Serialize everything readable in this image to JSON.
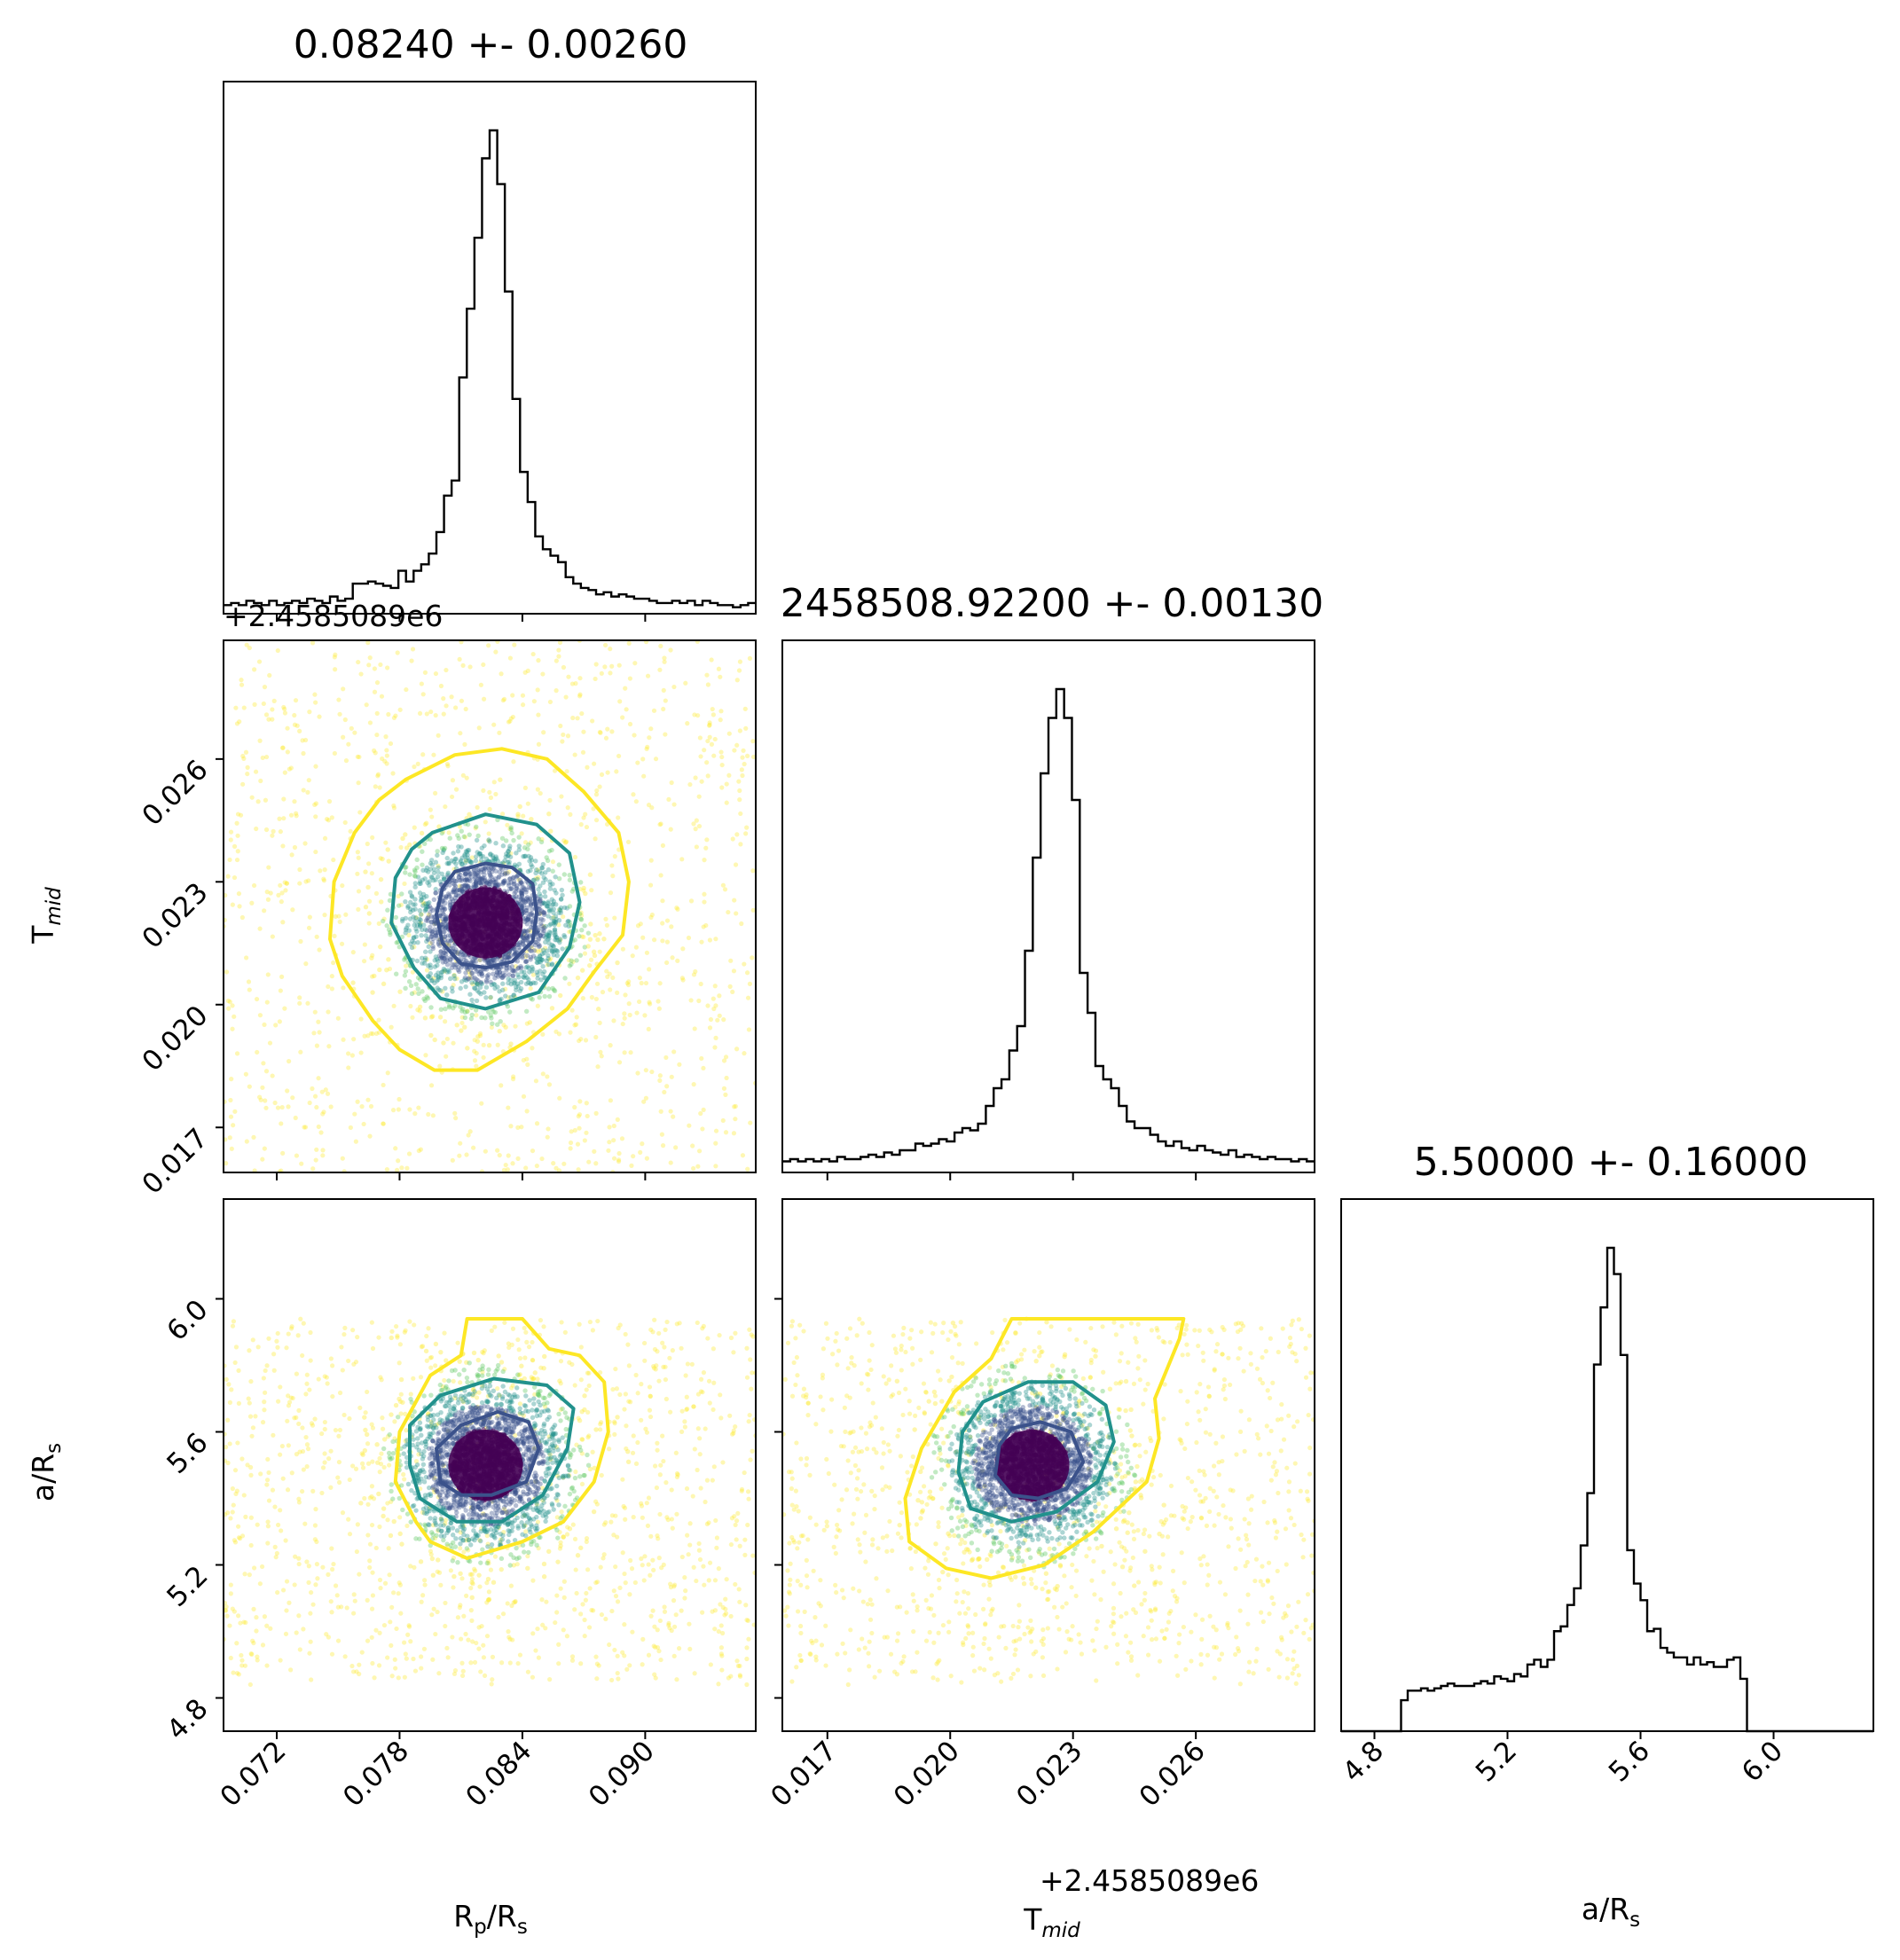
{
  "chart_data": {
    "type": "corner",
    "titles": {
      "rp": "0.08240 +- 0.00260",
      "tmid": "2458508.92200 +- 0.00130",
      "ars": "5.50000 +- 0.16000"
    },
    "axis_labels": {
      "rp": "R_p/R_s",
      "tmid": "T_mid",
      "ars": "a/R_s"
    },
    "offset_text": "+2.4585089e6",
    "ranges": {
      "rp": [
        0.0694,
        0.0954
      ],
      "tmid": [
        0.0159,
        0.0289
      ],
      "ars": [
        4.7,
        6.3
      ]
    },
    "ticks": {
      "rp": {
        "values": [
          0.072,
          0.078,
          0.084,
          0.09
        ],
        "labels": [
          "0.072",
          "0.078",
          "0.084",
          "0.090"
        ]
      },
      "tmid": {
        "values": [
          0.017,
          0.02,
          0.023,
          0.026
        ],
        "labels": [
          "0.017",
          "0.020",
          "0.023",
          "0.026"
        ]
      },
      "ars": {
        "values": [
          4.8,
          5.2,
          5.6,
          6.0
        ],
        "labels": [
          "4.8",
          "5.2",
          "5.6",
          "6.0"
        ]
      }
    },
    "histograms": {
      "rp": [
        4,
        5,
        4,
        6,
        5,
        4,
        6,
        4,
        5,
        6,
        5,
        7,
        6,
        5,
        8,
        6,
        7,
        14,
        14,
        15,
        14,
        13,
        12,
        20,
        15,
        20,
        23,
        28,
        38,
        55,
        62,
        110,
        142,
        175,
        212,
        225,
        200,
        150,
        100,
        66,
        52,
        36,
        30,
        27,
        24,
        17,
        14,
        12,
        11,
        9,
        10,
        8,
        9,
        8,
        7,
        7,
        6,
        5,
        5,
        6,
        5,
        6,
        4,
        6,
        5,
        4,
        4,
        3,
        4,
        5
      ],
      "tmid": [
        5,
        6,
        5,
        6,
        5,
        6,
        5,
        7,
        6,
        6,
        7,
        8,
        7,
        9,
        8,
        10,
        10,
        13,
        12,
        13,
        15,
        14,
        18,
        20,
        19,
        22,
        30,
        38,
        42,
        55,
        66,
        100,
        142,
        180,
        205,
        218,
        205,
        168,
        90,
        72,
        48,
        42,
        38,
        30,
        23,
        20,
        20,
        17,
        14,
        12,
        14,
        11,
        10,
        12,
        10,
        9,
        8,
        10,
        7,
        8,
        7,
        6,
        7,
        6,
        6,
        5,
        6,
        5
      ],
      "ars": [
        0,
        0,
        0,
        0,
        0,
        0,
        0,
        0,
        0,
        13,
        17,
        17,
        18,
        17,
        18,
        19,
        20,
        19,
        19,
        19,
        20,
        21,
        20,
        23,
        22,
        21,
        24,
        23,
        28,
        30,
        27,
        30,
        42,
        44,
        53,
        60,
        78,
        100,
        154,
        178,
        203,
        192,
        158,
        76,
        62,
        55,
        42,
        43,
        35,
        33,
        31,
        31,
        28,
        31,
        28,
        29,
        27,
        27,
        30,
        31,
        22,
        0,
        0,
        0,
        0,
        0,
        0,
        0,
        0,
        0,
        0,
        0,
        0,
        0,
        0,
        0,
        0,
        0,
        0,
        0
      ]
    },
    "contours": {
      "tmid_vs_rp": [
        {
          "level": "inner",
          "color": "#3b528b",
          "points": [
            [
              0.0807,
              0.02325
            ],
            [
              0.0822,
              0.02345
            ],
            [
              0.0835,
              0.02335
            ],
            [
              0.0845,
              0.02295
            ],
            [
              0.0847,
              0.02225
            ],
            [
              0.0845,
              0.02155
            ],
            [
              0.0835,
              0.02105
            ],
            [
              0.0822,
              0.0209
            ],
            [
              0.081,
              0.021
            ],
            [
              0.0801,
              0.0215
            ],
            [
              0.0798,
              0.0222
            ],
            [
              0.0801,
              0.02285
            ]
          ]
        },
        {
          "level": "middle",
          "color": "#21918c",
          "points": [
            [
              0.0796,
              0.0242
            ],
            [
              0.0822,
              0.02465
            ],
            [
              0.0847,
              0.0244
            ],
            [
              0.0863,
              0.0237
            ],
            [
              0.0868,
              0.0225
            ],
            [
              0.0863,
              0.0214
            ],
            [
              0.0848,
              0.0203
            ],
            [
              0.0822,
              0.0199
            ],
            [
              0.08,
              0.02015
            ],
            [
              0.0787,
              0.0209
            ],
            [
              0.0776,
              0.022
            ],
            [
              0.0778,
              0.0231
            ],
            [
              0.0786,
              0.0238
            ]
          ]
        },
        {
          "level": "outer",
          "color": "#fde725",
          "points": [
            [
              0.0783,
              0.0255
            ],
            [
              0.0807,
              0.0261
            ],
            [
              0.083,
              0.02625
            ],
            [
              0.0852,
              0.026
            ],
            [
              0.087,
              0.0252
            ],
            [
              0.0887,
              0.0242
            ],
            [
              0.0892,
              0.023
            ],
            [
              0.0889,
              0.0217
            ],
            [
              0.0875,
              0.0208
            ],
            [
              0.0862,
              0.0199
            ],
            [
              0.0842,
              0.0191
            ],
            [
              0.0818,
              0.0184
            ],
            [
              0.0797,
              0.0184
            ],
            [
              0.078,
              0.0189
            ],
            [
              0.0767,
              0.0196
            ],
            [
              0.0752,
              0.0207
            ],
            [
              0.0746,
              0.0216
            ],
            [
              0.0748,
              0.023
            ],
            [
              0.0758,
              0.0242
            ],
            [
              0.077,
              0.025
            ]
          ]
        }
      ],
      "ars_vs_rp": [
        {
          "level": "inner",
          "color": "#3b528b",
          "points": [
            [
              0.081,
              5.62
            ],
            [
              0.0828,
              5.66
            ],
            [
              0.0843,
              5.63
            ],
            [
              0.0848,
              5.55
            ],
            [
              0.0842,
              5.45
            ],
            [
              0.0825,
              5.41
            ],
            [
              0.081,
              5.41
            ],
            [
              0.08,
              5.45
            ],
            [
              0.0798,
              5.55
            ]
          ]
        },
        {
          "level": "middle",
          "color": "#21918c",
          "points": [
            [
              0.08,
              5.71
            ],
            [
              0.0826,
              5.76
            ],
            [
              0.0852,
              5.74
            ],
            [
              0.0865,
              5.67
            ],
            [
              0.0862,
              5.55
            ],
            [
              0.085,
              5.41
            ],
            [
              0.083,
              5.33
            ],
            [
              0.0808,
              5.33
            ],
            [
              0.079,
              5.4
            ],
            [
              0.0785,
              5.5
            ],
            [
              0.0785,
              5.62
            ]
          ]
        },
        {
          "level": "outer",
          "color": "#fde725",
          "points": [
            [
              0.0813,
              5.94
            ],
            [
              0.081,
              5.83
            ],
            [
              0.0795,
              5.77
            ],
            [
              0.078,
              5.6
            ],
            [
              0.0778,
              5.45
            ],
            [
              0.0788,
              5.33
            ],
            [
              0.0795,
              5.27
            ],
            [
              0.0813,
              5.22
            ],
            [
              0.084,
              5.27
            ],
            [
              0.086,
              5.33
            ],
            [
              0.0875,
              5.45
            ],
            [
              0.0882,
              5.6
            ],
            [
              0.088,
              5.75
            ],
            [
              0.0868,
              5.83
            ],
            [
              0.0853,
              5.85
            ],
            [
              0.084,
              5.94
            ]
          ]
        }
      ],
      "ars_vs_tmid": [
        {
          "level": "inner",
          "color": "#3b528b",
          "points": [
            [
              0.0215,
              5.61
            ],
            [
              0.0222,
              5.63
            ],
            [
              0.02295,
              5.6
            ],
            [
              0.02325,
              5.51
            ],
            [
              0.02285,
              5.43
            ],
            [
              0.02215,
              5.4
            ],
            [
              0.0215,
              5.41
            ],
            [
              0.0211,
              5.47
            ],
            [
              0.0212,
              5.56
            ]
          ]
        },
        {
          "level": "middle",
          "color": "#21918c",
          "points": [
            [
              0.0208,
              5.69
            ],
            [
              0.0219,
              5.75
            ],
            [
              0.023,
              5.75
            ],
            [
              0.0238,
              5.68
            ],
            [
              0.024,
              5.57
            ],
            [
              0.0236,
              5.45
            ],
            [
              0.0226,
              5.36
            ],
            [
              0.0215,
              5.33
            ],
            [
              0.0205,
              5.37
            ],
            [
              0.0202,
              5.48
            ],
            [
              0.0203,
              5.6
            ]
          ]
        },
        {
          "level": "outer",
          "color": "#fde725",
          "points": [
            [
              0.0215,
              5.94
            ],
            [
              0.021,
              5.82
            ],
            [
              0.0201,
              5.72
            ],
            [
              0.0193,
              5.55
            ],
            [
              0.0189,
              5.4
            ],
            [
              0.019,
              5.27
            ],
            [
              0.0199,
              5.19
            ],
            [
              0.021,
              5.16
            ],
            [
              0.0223,
              5.2
            ],
            [
              0.0235,
              5.3
            ],
            [
              0.0248,
              5.45
            ],
            [
              0.0251,
              5.58
            ],
            [
              0.025,
              5.7
            ],
            [
              0.0256,
              5.88
            ],
            [
              0.0257,
              5.94
            ]
          ]
        }
      ]
    },
    "scatter_center": {
      "rp": 0.0822,
      "tmid": 0.022,
      "ars": 5.5
    },
    "colormap": [
      "#440154",
      "#3b528b",
      "#21918c",
      "#5ec962",
      "#fde725"
    ],
    "grid": false,
    "legend": "none"
  }
}
